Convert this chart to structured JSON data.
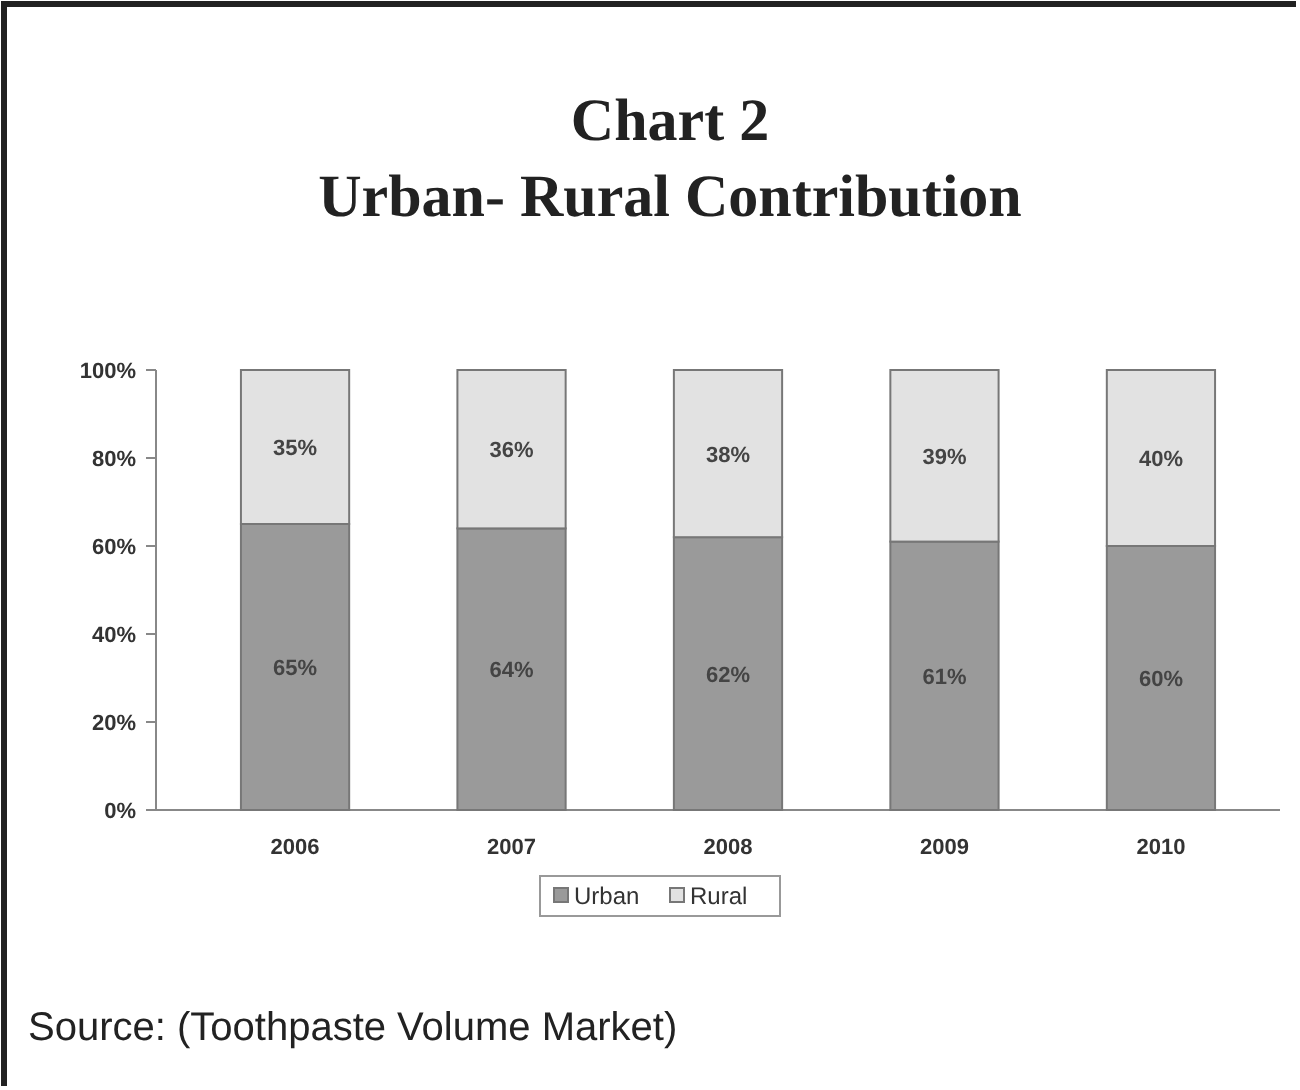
{
  "chart_data": {
    "type": "bar",
    "title": "Chart 2",
    "subtitle": "Urban- Rural Contribution",
    "categories": [
      "2006",
      "2007",
      "2008",
      "2009",
      "2010"
    ],
    "stacked": true,
    "series": [
      {
        "name": "Urban",
        "color": "#9a9a9a",
        "values": [
          65,
          64,
          62,
          61,
          60
        ],
        "value_labels": [
          "65%",
          "64%",
          "62%",
          "61%",
          "60%"
        ]
      },
      {
        "name": "Rural",
        "color": "#e2e2e2",
        "values": [
          35,
          36,
          38,
          39,
          40
        ],
        "value_labels": [
          "35%",
          "36%",
          "38%",
          "39%",
          "40%"
        ]
      }
    ],
    "ylim": [
      0,
      100
    ],
    "yticks": [
      {
        "value": 0,
        "label": "0%"
      },
      {
        "value": 20,
        "label": "20%"
      },
      {
        "value": 40,
        "label": "40%"
      },
      {
        "value": 60,
        "label": "60%"
      },
      {
        "value": 80,
        "label": "80%"
      },
      {
        "value": 100,
        "label": "100%"
      }
    ],
    "legend": "bottom",
    "annotations": [
      "Source: (Toothpaste Volume Market)"
    ]
  }
}
